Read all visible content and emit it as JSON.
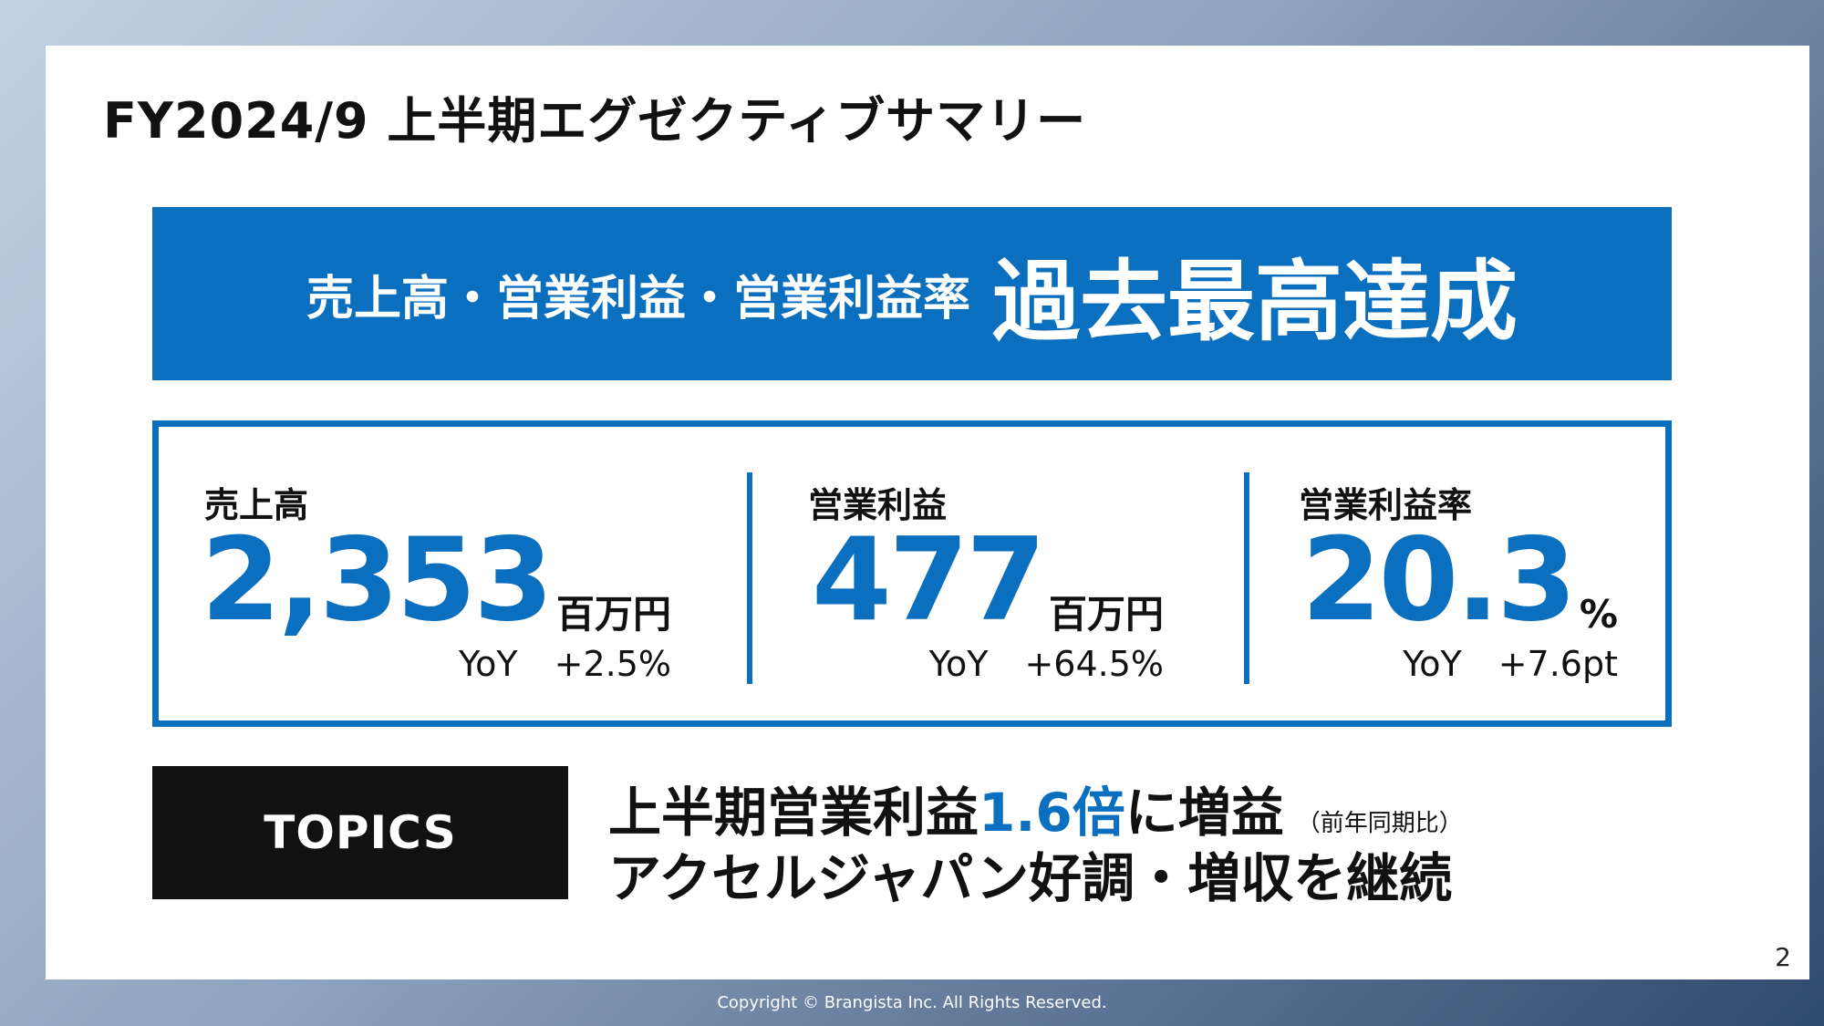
{
  "slide": {
    "title": "FY2024/9 上半期エグゼクティブサマリー",
    "page_number": "2"
  },
  "banner": {
    "subtitle": "売上高・営業利益・営業利益率",
    "headline": "過去最高達成"
  },
  "metrics": [
    {
      "label": "売上高",
      "value": "2,353",
      "unit": "百万円",
      "yoy_label": "YoY",
      "yoy_value": "+2.5%"
    },
    {
      "label": "営業利益",
      "value": "477",
      "unit": "百万円",
      "yoy_label": "YoY",
      "yoy_value": "+64.5%"
    },
    {
      "label": "営業利益率",
      "value": "20.3",
      "unit": "%",
      "yoy_label": "YoY",
      "yoy_value": "+7.6pt"
    }
  ],
  "topics": {
    "label": "TOPICS",
    "line1_prefix": "上半期営業利益",
    "line1_accent": "1.6倍",
    "line1_suffix": "に増益",
    "line1_note": "（前年同期比）",
    "line2": "アクセルジャパン好調・増収を継続"
  },
  "footer": {
    "copyright": "Copyright © Brangista Inc. All Rights Reserved."
  },
  "colors": {
    "accent": "#0b6fc0",
    "dark": "#111111"
  }
}
